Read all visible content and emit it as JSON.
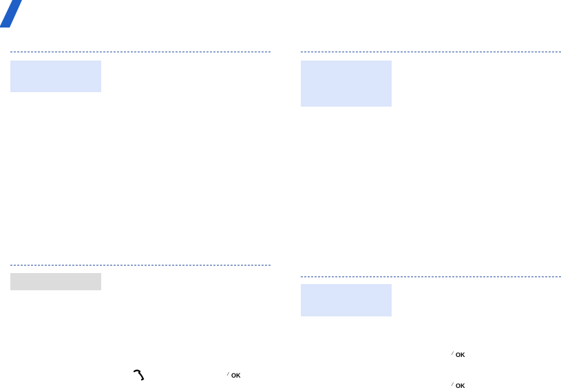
{
  "icons": {
    "ok_key": "OK"
  }
}
